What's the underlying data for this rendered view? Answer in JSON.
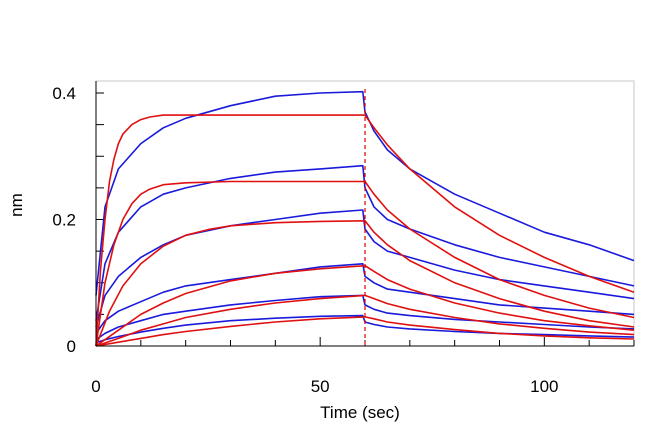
{
  "chart_data": {
    "type": "line",
    "title": "",
    "xlabel": "Time (sec)",
    "ylabel": "nm",
    "xlim": [
      0,
      120
    ],
    "ylim": [
      0,
      0.4
    ],
    "x_ticks": [
      0,
      50,
      100
    ],
    "x_tick_labels": [
      "0",
      "50",
      "100"
    ],
    "y_ticks": [
      0,
      0.2,
      0.4
    ],
    "y_tick_labels": [
      "0",
      "0.2",
      "0.4"
    ],
    "grid": false,
    "legend": "none",
    "association_end_sec": 60,
    "divider_line": {
      "x": 60,
      "color": "#e00000",
      "style": "dashed"
    },
    "colors": {
      "measured": "#1a1adc",
      "fit": "#e01010",
      "axis": "#000000",
      "frame": "#c8c8c8"
    },
    "series": [
      {
        "kind": "measured",
        "color": "#1a1adc",
        "x": [
          0,
          2,
          5,
          10,
          15,
          20,
          30,
          40,
          50,
          59.5,
          60,
          62,
          65,
          70,
          80,
          90,
          100,
          110,
          120
        ],
        "y": [
          0.08,
          0.22,
          0.28,
          0.32,
          0.345,
          0.36,
          0.38,
          0.395,
          0.4,
          0.402,
          0.37,
          0.34,
          0.31,
          0.28,
          0.24,
          0.21,
          0.18,
          0.16,
          0.135
        ]
      },
      {
        "kind": "measured",
        "color": "#1a1adc",
        "x": [
          0,
          2,
          5,
          10,
          15,
          20,
          30,
          40,
          50,
          59.5,
          60,
          62,
          65,
          70,
          80,
          90,
          100,
          110,
          120
        ],
        "y": [
          0.04,
          0.13,
          0.18,
          0.22,
          0.24,
          0.25,
          0.265,
          0.275,
          0.28,
          0.285,
          0.25,
          0.22,
          0.2,
          0.185,
          0.16,
          0.14,
          0.125,
          0.11,
          0.095
        ]
      },
      {
        "kind": "measured",
        "color": "#1a1adc",
        "x": [
          0,
          2,
          5,
          10,
          15,
          20,
          30,
          40,
          50,
          59.5,
          60,
          62,
          65,
          70,
          80,
          90,
          100,
          110,
          120
        ],
        "y": [
          0.03,
          0.08,
          0.11,
          0.14,
          0.16,
          0.175,
          0.19,
          0.2,
          0.21,
          0.215,
          0.185,
          0.165,
          0.15,
          0.14,
          0.12,
          0.105,
          0.095,
          0.085,
          0.075
        ]
      },
      {
        "kind": "measured",
        "color": "#1a1adc",
        "x": [
          0,
          2,
          5,
          10,
          15,
          20,
          30,
          40,
          50,
          59.5,
          60,
          62,
          65,
          70,
          80,
          90,
          100,
          110,
          120
        ],
        "y": [
          0.02,
          0.04,
          0.055,
          0.07,
          0.085,
          0.095,
          0.105,
          0.115,
          0.125,
          0.13,
          0.11,
          0.1,
          0.09,
          0.085,
          0.075,
          0.065,
          0.06,
          0.055,
          0.05
        ]
      },
      {
        "kind": "measured",
        "color": "#1a1adc",
        "x": [
          0,
          2,
          5,
          10,
          15,
          20,
          30,
          40,
          50,
          59.5,
          60,
          62,
          65,
          70,
          80,
          90,
          100,
          110,
          120
        ],
        "y": [
          0.01,
          0.02,
          0.03,
          0.04,
          0.05,
          0.055,
          0.065,
          0.072,
          0.078,
          0.08,
          0.065,
          0.058,
          0.052,
          0.048,
          0.042,
          0.038,
          0.034,
          0.03,
          0.027
        ]
      },
      {
        "kind": "measured",
        "color": "#1a1adc",
        "x": [
          0,
          2,
          5,
          10,
          15,
          20,
          30,
          40,
          50,
          59.5,
          60,
          62,
          65,
          70,
          80,
          90,
          100,
          110,
          120
        ],
        "y": [
          0.005,
          0.01,
          0.015,
          0.022,
          0.028,
          0.033,
          0.04,
          0.044,
          0.047,
          0.048,
          0.038,
          0.034,
          0.03,
          0.027,
          0.023,
          0.02,
          0.018,
          0.016,
          0.014
        ]
      },
      {
        "kind": "fit",
        "color": "#e01010",
        "x": [
          0,
          1,
          2,
          3,
          4,
          5,
          6,
          8,
          10,
          12,
          15,
          20,
          30,
          40,
          50,
          60,
          62,
          65,
          70,
          80,
          90,
          100,
          110,
          120
        ],
        "y": [
          0,
          0.12,
          0.2,
          0.26,
          0.295,
          0.32,
          0.335,
          0.35,
          0.358,
          0.362,
          0.365,
          0.365,
          0.365,
          0.365,
          0.365,
          0.365,
          0.345,
          0.318,
          0.28,
          0.22,
          0.175,
          0.14,
          0.11,
          0.085
        ]
      },
      {
        "kind": "fit",
        "color": "#e01010",
        "x": [
          0,
          2,
          4,
          6,
          8,
          10,
          12,
          15,
          20,
          30,
          40,
          50,
          60,
          62,
          65,
          70,
          80,
          90,
          100,
          110,
          120
        ],
        "y": [
          0,
          0.1,
          0.16,
          0.2,
          0.225,
          0.24,
          0.248,
          0.255,
          0.258,
          0.26,
          0.26,
          0.26,
          0.26,
          0.24,
          0.215,
          0.185,
          0.14,
          0.105,
          0.08,
          0.06,
          0.045
        ]
      },
      {
        "kind": "fit",
        "color": "#e01010",
        "x": [
          0,
          3,
          6,
          10,
          15,
          20,
          25,
          30,
          40,
          50,
          60,
          62,
          65,
          70,
          80,
          90,
          100,
          110,
          120
        ],
        "y": [
          0,
          0.055,
          0.095,
          0.13,
          0.158,
          0.175,
          0.184,
          0.19,
          0.195,
          0.197,
          0.198,
          0.18,
          0.16,
          0.135,
          0.1,
          0.075,
          0.055,
          0.04,
          0.03
        ]
      },
      {
        "kind": "fit",
        "color": "#e01010",
        "x": [
          0,
          5,
          10,
          15,
          20,
          30,
          40,
          50,
          60,
          62,
          65,
          70,
          80,
          90,
          100,
          110,
          120
        ],
        "y": [
          0,
          0.025,
          0.05,
          0.068,
          0.083,
          0.103,
          0.115,
          0.122,
          0.127,
          0.118,
          0.105,
          0.09,
          0.068,
          0.052,
          0.04,
          0.032,
          0.025
        ]
      },
      {
        "kind": "fit",
        "color": "#e01010",
        "x": [
          0,
          5,
          10,
          15,
          20,
          30,
          40,
          50,
          60,
          62,
          65,
          70,
          80,
          90,
          100,
          110,
          120
        ],
        "y": [
          0,
          0.012,
          0.025,
          0.035,
          0.045,
          0.058,
          0.068,
          0.075,
          0.08,
          0.075,
          0.067,
          0.058,
          0.045,
          0.035,
          0.028,
          0.022,
          0.018
        ]
      },
      {
        "kind": "fit",
        "color": "#e01010",
        "x": [
          0,
          5,
          10,
          15,
          20,
          30,
          40,
          50,
          60,
          62,
          65,
          70,
          80,
          90,
          100,
          110,
          120
        ],
        "y": [
          0,
          0.006,
          0.012,
          0.018,
          0.023,
          0.031,
          0.038,
          0.043,
          0.046,
          0.043,
          0.038,
          0.033,
          0.026,
          0.02,
          0.016,
          0.013,
          0.011
        ]
      }
    ]
  }
}
